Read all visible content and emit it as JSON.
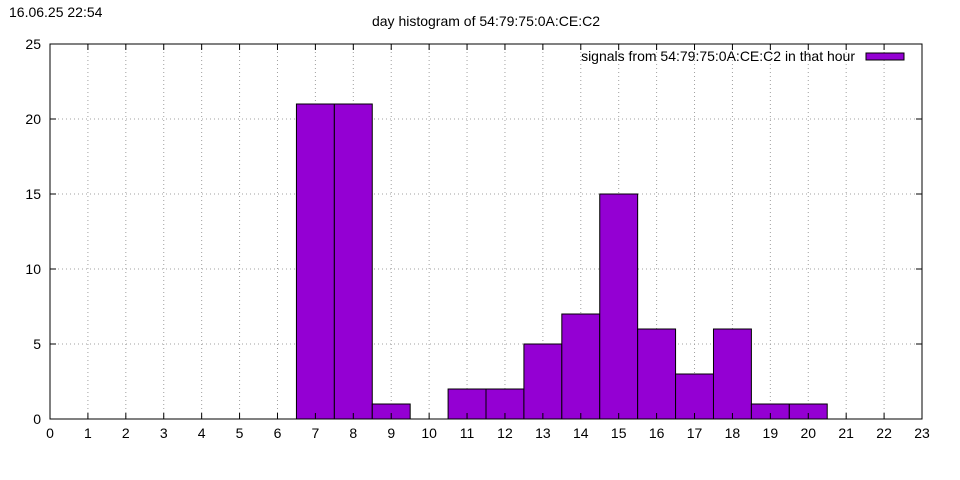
{
  "timestamp": "16.06.25 22:54",
  "chart_data": {
    "type": "bar",
    "title": "day histogram of 54:79:75:0A:CE:C2",
    "xlabel": "",
    "ylabel": "",
    "xlim": [
      0,
      23
    ],
    "ylim": [
      0,
      25
    ],
    "x_ticks": [
      0,
      1,
      2,
      3,
      4,
      5,
      6,
      7,
      8,
      9,
      10,
      11,
      12,
      13,
      14,
      15,
      16,
      17,
      18,
      19,
      20,
      21,
      22,
      23
    ],
    "y_ticks": [
      0,
      5,
      10,
      15,
      20,
      25
    ],
    "grid": true,
    "legend_position": "top-right",
    "series": [
      {
        "name": "signals from 54:79:75:0A:CE:C2 in that hour",
        "color": "#9400d3",
        "points": [
          {
            "x": 7,
            "y": 21
          },
          {
            "x": 8,
            "y": 21
          },
          {
            "x": 9,
            "y": 1
          },
          {
            "x": 11,
            "y": 2
          },
          {
            "x": 12,
            "y": 2
          },
          {
            "x": 13,
            "y": 5
          },
          {
            "x": 14,
            "y": 7
          },
          {
            "x": 15,
            "y": 15
          },
          {
            "x": 16,
            "y": 6
          },
          {
            "x": 17,
            "y": 3
          },
          {
            "x": 18,
            "y": 6
          },
          {
            "x": 19,
            "y": 1
          },
          {
            "x": 20,
            "y": 1
          }
        ]
      }
    ]
  }
}
